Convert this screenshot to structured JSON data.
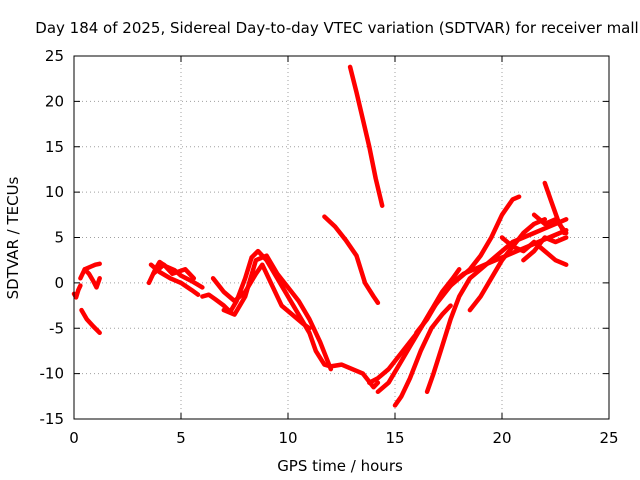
{
  "chart_data": {
    "type": "line",
    "title": "Day 184 of 2025, Sidereal Day-to-day VTEC variation (SDTVAR) for receiver mall",
    "xlabel": "GPS time / hours",
    "ylabel": "SDTVAR / TECUs",
    "xlim": [
      0,
      25
    ],
    "ylim": [
      -15,
      25
    ],
    "xticks": [
      "0",
      "5",
      "10",
      "15",
      "20",
      "25"
    ],
    "yticks": [
      "-15",
      "-10",
      "-5",
      "0",
      "5",
      "10",
      "15",
      "20",
      "25"
    ],
    "grid": true,
    "color": "#ff0000",
    "series": [
      {
        "name": "s1",
        "x": [
          0.0,
          0.1,
          0.2,
          0.3
        ],
        "y": [
          -1.2,
          -1.6,
          -0.8,
          -0.3
        ]
      },
      {
        "name": "s2",
        "x": [
          0.35,
          0.6,
          0.9,
          1.2
        ],
        "y": [
          -3.0,
          -4.0,
          -4.8,
          -5.5
        ]
      },
      {
        "name": "s3",
        "x": [
          0.3,
          0.5,
          0.7,
          0.9,
          1.05,
          1.2
        ],
        "y": [
          0.5,
          1.5,
          1.0,
          0.2,
          -0.5,
          0.5
        ]
      },
      {
        "name": "s4",
        "x": [
          0.5,
          0.8,
          1.0,
          1.2
        ],
        "y": [
          1.5,
          1.8,
          2.0,
          2.1
        ]
      },
      {
        "name": "s5",
        "x": [
          3.5,
          3.8,
          4.0,
          4.3,
          4.7,
          5.0,
          5.5,
          6.0
        ],
        "y": [
          0.0,
          1.5,
          2.3,
          1.8,
          1.4,
          0.8,
          0.2,
          -0.5
        ]
      },
      {
        "name": "s6",
        "x": [
          3.6,
          4.0,
          4.5,
          5.0,
          5.5,
          5.8
        ],
        "y": [
          2.0,
          1.2,
          0.5,
          0.0,
          -0.8,
          -1.3
        ]
      },
      {
        "name": "s7",
        "x": [
          3.7,
          4.2,
          4.6,
          5.2,
          5.6
        ],
        "y": [
          1.0,
          2.0,
          1.0,
          1.5,
          0.5
        ]
      },
      {
        "name": "s8",
        "x": [
          6.0,
          6.3,
          6.6,
          7.0,
          7.3,
          7.6,
          8.0,
          8.3,
          8.6,
          9.0,
          9.5,
          10.0,
          10.5,
          11.0,
          11.3,
          11.7,
          12.0,
          12.5,
          13.0,
          13.5,
          14.0,
          14.2
        ],
        "y": [
          -1.5,
          -1.3,
          -1.8,
          -2.5,
          -3.2,
          -2.0,
          0.5,
          2.8,
          3.5,
          2.5,
          0.5,
          -1.5,
          -3.5,
          -5.5,
          -7.5,
          -9.0,
          -9.2,
          -9.0,
          -9.5,
          -10.0,
          -11.5,
          -11.0
        ]
      },
      {
        "name": "s9",
        "x": [
          6.5,
          7.0,
          7.5,
          8.0,
          8.5,
          8.8,
          9.2,
          9.7,
          10.2,
          10.7,
          11.0
        ],
        "y": [
          0.5,
          -1.0,
          -2.0,
          -1.0,
          1.0,
          2.0,
          0.0,
          -2.5,
          -3.5,
          -4.5,
          -5.0
        ]
      },
      {
        "name": "s10",
        "x": [
          7.0,
          7.5,
          8.0,
          8.5,
          9.0,
          9.5,
          10.0,
          10.5,
          11.0,
          11.5,
          12.0
        ],
        "y": [
          -3.0,
          -3.5,
          -1.5,
          2.5,
          3.0,
          1.0,
          -0.5,
          -2.0,
          -4.0,
          -6.5,
          -9.5
        ]
      },
      {
        "name": "s11",
        "x": [
          12.9,
          13.2,
          13.5,
          13.8,
          14.1,
          14.4
        ],
        "y": [
          23.8,
          21.0,
          18.0,
          15.0,
          11.5,
          8.5
        ]
      },
      {
        "name": "s12",
        "x": [
          11.7,
          12.2,
          12.7,
          13.2,
          13.6,
          14.0,
          14.2
        ],
        "y": [
          7.3,
          6.2,
          4.7,
          3.0,
          0.0,
          -1.5,
          -2.2
        ]
      },
      {
        "name": "s13",
        "x": [
          13.8,
          14.2,
          14.7,
          15.2,
          15.7,
          16.2,
          16.7,
          17.2,
          17.7,
          18.2,
          18.7,
          19.2,
          19.7,
          20.2,
          20.7,
          21.2,
          21.7,
          22.2,
          22.7,
          23.0
        ],
        "y": [
          -11.0,
          -10.5,
          -9.5,
          -8.0,
          -6.5,
          -5.0,
          -3.0,
          -1.5,
          0.0,
          1.0,
          1.5,
          2.0,
          2.5,
          3.0,
          3.5,
          4.0,
          4.5,
          5.0,
          5.5,
          5.8
        ]
      },
      {
        "name": "s14",
        "x": [
          14.2,
          14.7,
          15.2,
          15.7,
          16.2,
          16.7,
          17.2,
          17.7,
          18.0
        ],
        "y": [
          -12.0,
          -11.0,
          -9.0,
          -7.0,
          -5.0,
          -3.0,
          -1.0,
          0.5,
          1.5
        ]
      },
      {
        "name": "s15",
        "x": [
          15.0,
          15.3,
          15.7,
          16.2,
          16.7,
          17.2,
          17.6
        ],
        "y": [
          -13.5,
          -12.5,
          -10.5,
          -7.5,
          -5.0,
          -3.5,
          -2.5
        ]
      },
      {
        "name": "s16",
        "x": [
          16.0,
          16.5,
          17.0,
          17.5,
          18.0,
          18.5,
          19.0,
          19.5,
          20.0,
          20.5,
          20.8
        ],
        "y": [
          -5.5,
          -4.0,
          -2.0,
          -0.5,
          0.5,
          1.5,
          3.0,
          5.0,
          7.5,
          9.2,
          9.5
        ]
      },
      {
        "name": "s17",
        "x": [
          16.5,
          16.8,
          17.2,
          17.6,
          18.0,
          18.5,
          19.0,
          19.5,
          20.0,
          20.5,
          21.0,
          21.5,
          22.0,
          22.5,
          23.0
        ],
        "y": [
          -12.0,
          -10.0,
          -7.0,
          -4.0,
          -1.5,
          0.5,
          1.5,
          2.5,
          3.5,
          4.5,
          5.0,
          5.5,
          6.0,
          6.5,
          7.0
        ]
      },
      {
        "name": "s18",
        "x": [
          18.5,
          19.0,
          19.5,
          20.0,
          20.5,
          21.0,
          21.5,
          22.0
        ],
        "y": [
          -3.0,
          -1.5,
          0.5,
          2.5,
          4.0,
          5.5,
          6.5,
          7.0
        ]
      },
      {
        "name": "s19",
        "x": [
          20.0,
          20.5,
          21.0,
          21.5,
          22.0,
          22.5,
          23.0
        ],
        "y": [
          5.0,
          4.0,
          3.5,
          4.5,
          3.5,
          2.5,
          2.0
        ]
      },
      {
        "name": "s20",
        "x": [
          21.0,
          21.5,
          22.0,
          22.5,
          23.0
        ],
        "y": [
          2.5,
          3.5,
          5.0,
          4.5,
          5.0
        ]
      },
      {
        "name": "s21",
        "x": [
          22.0,
          22.3,
          22.6,
          22.9
        ],
        "y": [
          11.0,
          9.0,
          7.0,
          5.5
        ]
      },
      {
        "name": "s22",
        "x": [
          21.5,
          22.0,
          22.5,
          23.0
        ],
        "y": [
          7.5,
          6.5,
          7.0,
          5.5
        ]
      }
    ]
  }
}
